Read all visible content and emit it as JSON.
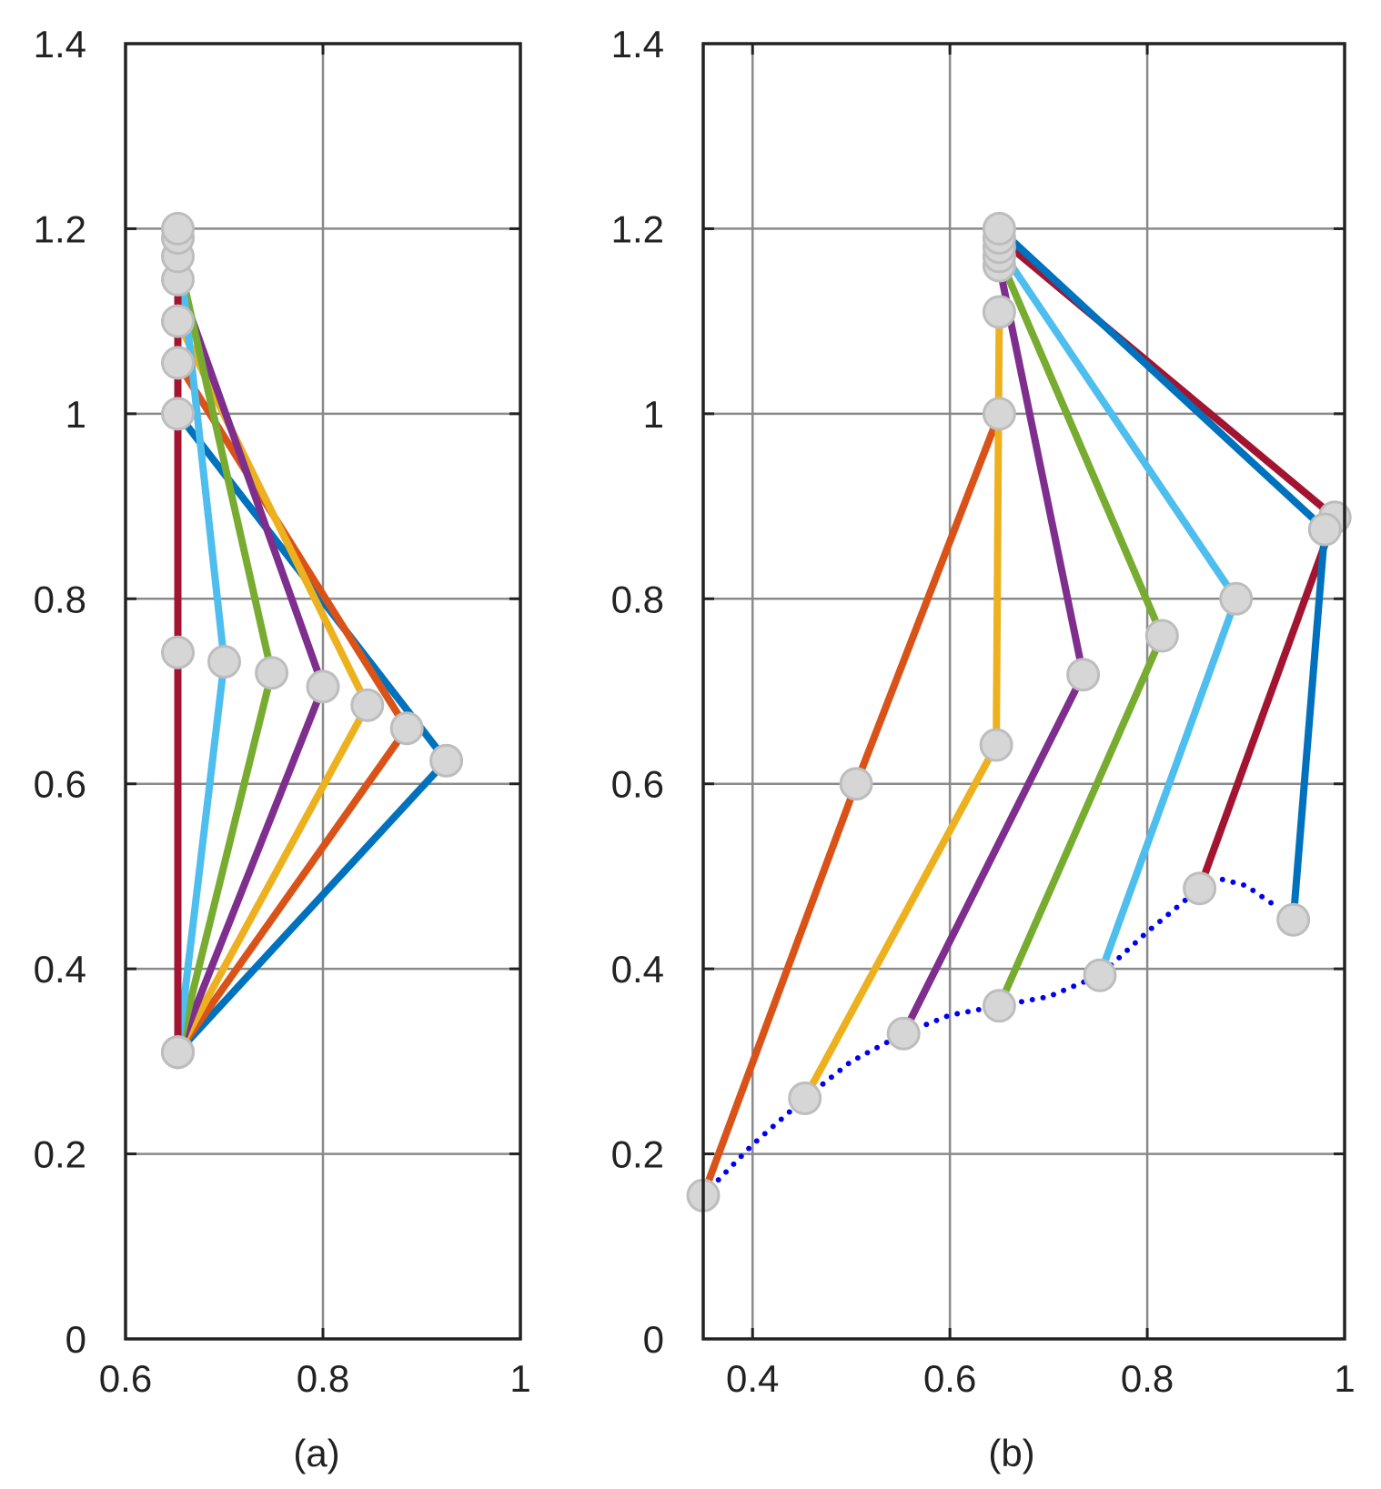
{
  "chart_data": [
    {
      "type": "line",
      "panel_label": "(a)",
      "xlim": [
        0.6,
        1.0
      ],
      "ylim": [
        0,
        1.4
      ],
      "xticks": [
        "0.6",
        "0.8",
        "1"
      ],
      "yticks": [
        "0",
        "0.2",
        "0.4",
        "0.6",
        "0.8",
        "1",
        "1.2",
        "1.4"
      ],
      "grid": true,
      "series": [
        {
          "color": "#0072BD",
          "points": [
            [
              0.653,
              1.0
            ],
            [
              0.925,
              0.625
            ],
            [
              0.653,
              0.31
            ]
          ]
        },
        {
          "color": "#D95319",
          "points": [
            [
              0.653,
              1.055
            ],
            [
              0.885,
              0.66
            ],
            [
              0.653,
              0.31
            ]
          ]
        },
        {
          "color": "#EDB120",
          "points": [
            [
              0.653,
              1.1
            ],
            [
              0.845,
              0.685
            ],
            [
              0.653,
              0.31
            ]
          ]
        },
        {
          "color": "#7E2F8E",
          "points": [
            [
              0.653,
              1.145
            ],
            [
              0.8,
              0.705
            ],
            [
              0.653,
              0.31
            ]
          ]
        },
        {
          "color": "#77AC30",
          "points": [
            [
              0.653,
              1.17
            ],
            [
              0.748,
              0.72
            ],
            [
              0.653,
              0.31
            ]
          ]
        },
        {
          "color": "#4DBEEE",
          "points": [
            [
              0.653,
              1.19
            ],
            [
              0.7,
              0.732
            ],
            [
              0.653,
              0.31
            ]
          ]
        },
        {
          "color": "#A2142F",
          "points": [
            [
              0.653,
              1.2
            ],
            [
              0.653,
              0.742
            ],
            [
              0.653,
              0.31
            ]
          ]
        }
      ]
    },
    {
      "type": "line",
      "panel_label": "(b)",
      "xlim": [
        0.35,
        1.0
      ],
      "ylim": [
        0,
        1.4
      ],
      "xticks": [
        "0.4",
        "0.6",
        "0.8",
        "1"
      ],
      "yticks": [
        "0",
        "0.2",
        "0.4",
        "0.6",
        "0.8",
        "1",
        "1.2",
        "1.4"
      ],
      "grid": true,
      "series": [
        {
          "color": "#D95319",
          "points": [
            [
              0.65,
              1.0
            ],
            [
              0.505,
              0.6
            ],
            [
              0.35,
              0.155
            ]
          ]
        },
        {
          "color": "#EDB120",
          "points": [
            [
              0.65,
              1.11
            ],
            [
              0.647,
              0.642
            ],
            [
              0.453,
              0.26
            ]
          ]
        },
        {
          "color": "#7E2F8E",
          "points": [
            [
              0.65,
              1.16
            ],
            [
              0.735,
              0.718
            ],
            [
              0.553,
              0.33
            ]
          ]
        },
        {
          "color": "#77AC30",
          "points": [
            [
              0.65,
              1.17
            ],
            [
              0.815,
              0.76
            ],
            [
              0.65,
              0.36
            ]
          ]
        },
        {
          "color": "#4DBEEE",
          "points": [
            [
              0.65,
              1.18
            ],
            [
              0.89,
              0.8
            ],
            [
              0.752,
              0.393
            ]
          ]
        },
        {
          "color": "#A2142F",
          "points": [
            [
              0.65,
              1.19
            ],
            [
              0.99,
              0.888
            ],
            [
              0.853,
              0.487
            ]
          ]
        },
        {
          "color": "#0072BD",
          "points": [
            [
              0.65,
              1.2
            ],
            [
              0.98,
              0.875
            ],
            [
              0.948,
              0.453
            ]
          ]
        }
      ],
      "dotted_curve": {
        "color": "#0000EE",
        "points": [
          [
            0.35,
            0.155
          ],
          [
            0.4,
            0.21
          ],
          [
            0.453,
            0.26
          ],
          [
            0.5,
            0.3
          ],
          [
            0.553,
            0.33
          ],
          [
            0.6,
            0.35
          ],
          [
            0.65,
            0.36
          ],
          [
            0.7,
            0.37
          ],
          [
            0.752,
            0.393
          ],
          [
            0.8,
            0.44
          ],
          [
            0.853,
            0.487
          ],
          [
            0.875,
            0.497
          ],
          [
            0.9,
            0.49
          ],
          [
            0.93,
            0.468
          ]
        ]
      }
    }
  ]
}
